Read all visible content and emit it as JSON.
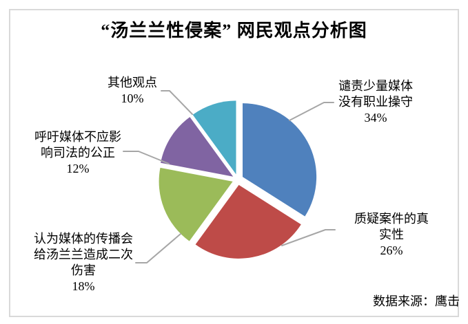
{
  "title": "“汤兰兰性侵案” 网民观点分析图",
  "source_note": "数据来源：鹰击",
  "chart_data": {
    "type": "pie",
    "title": "“汤兰兰性侵案” 网民观点分析图",
    "direction": "clockwise",
    "start_angle_deg": 0,
    "exploded": true,
    "legend_position": "none",
    "slices": [
      {
        "label": "谴责少量媒体没有职业操守",
        "value": 34,
        "pct_label": "34%",
        "color": "#4F81BD"
      },
      {
        "label": "质疑案件的真实性",
        "value": 26,
        "pct_label": "26%",
        "color": "#BE4B48"
      },
      {
        "label": "认为媒体的传播会给汤兰兰造成二次伤害",
        "value": 18,
        "pct_label": "18%",
        "color": "#9BBB59"
      },
      {
        "label": "呼吁媒体不应影响司法的公正",
        "value": 12,
        "pct_label": "12%",
        "color": "#8064A2"
      },
      {
        "label": "其他观点",
        "value": 10,
        "pct_label": "10%",
        "color": "#4BACC6"
      }
    ],
    "source_note": "数据来源：鹰击"
  },
  "callouts": {
    "condemn": [
      "谴责少量媒体",
      "没有职业操守",
      "34%"
    ],
    "doubt": [
      "质疑案件的真实性",
      "26%"
    ],
    "harm": [
      "认为媒体的传播会",
      "给汤兰兰造成二次",
      "伤害",
      "18%"
    ],
    "justice": [
      "呼吁媒体不应影",
      "响司法的公正",
      "12%"
    ],
    "other": [
      "其他观点",
      "10%"
    ]
  },
  "colors": {
    "leader_line": "#a6a6a6",
    "frame_border": "#d9d9d9"
  }
}
